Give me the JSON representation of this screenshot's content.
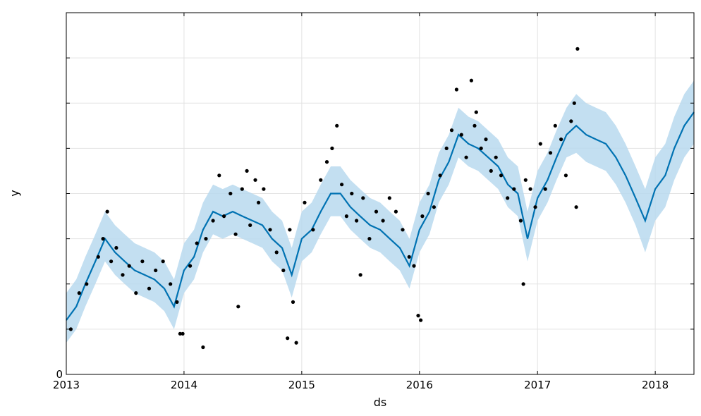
{
  "chart_data": {
    "type": "line",
    "title": "",
    "xlabel": "ds",
    "ylabel": "y",
    "xlim": [
      "2013-01-01",
      "2018-05-01"
    ],
    "ylim": [
      0,
      8
    ],
    "x_ticks": [
      "2013",
      "2014",
      "2015",
      "2016",
      "2017",
      "2018"
    ],
    "y_ticks": [
      {
        "value": 0,
        "label": "0"
      },
      {
        "value": 1,
        "label": ""
      },
      {
        "value": 2,
        "label": ""
      },
      {
        "value": 3,
        "label": ""
      },
      {
        "value": 4,
        "label": ""
      },
      {
        "value": 5,
        "label": ""
      },
      {
        "value": 6,
        "label": ""
      },
      {
        "value": 7,
        "label": ""
      }
    ],
    "grid": true,
    "colors": {
      "forecast_line": "#0072B2",
      "uncertainty_band": "#b9d9ee",
      "observed_points": "#000000",
      "grid": "#e3e3e3"
    },
    "series": [
      {
        "kind": "forecast",
        "x": [
          "2013-01-01",
          "2013-02-01",
          "2013-03-01",
          "2013-04-01",
          "2013-05-01",
          "2013-06-01",
          "2013-07-01",
          "2013-08-01",
          "2013-09-01",
          "2013-10-01",
          "2013-11-01",
          "2013-12-01",
          "2014-01-01",
          "2014-02-01",
          "2014-03-01",
          "2014-04-01",
          "2014-05-01",
          "2014-06-01",
          "2014-07-01",
          "2014-08-01",
          "2014-09-01",
          "2014-10-01",
          "2014-11-01",
          "2014-12-01",
          "2015-01-01",
          "2015-02-01",
          "2015-03-01",
          "2015-04-01",
          "2015-05-01",
          "2015-06-01",
          "2015-07-01",
          "2015-08-01",
          "2015-09-01",
          "2015-10-01",
          "2015-11-01",
          "2015-12-01",
          "2016-01-01",
          "2016-02-01",
          "2016-03-01",
          "2016-04-01",
          "2016-05-01",
          "2016-06-01",
          "2016-07-01",
          "2016-08-01",
          "2016-09-01",
          "2016-10-01",
          "2016-11-01",
          "2016-12-01",
          "2017-01-01",
          "2017-02-01",
          "2017-03-01",
          "2017-04-01",
          "2017-05-01",
          "2017-06-01",
          "2017-07-01",
          "2017-08-01",
          "2017-09-01",
          "2017-10-01",
          "2017-11-01",
          "2017-12-01",
          "2018-01-01",
          "2018-02-01",
          "2018-03-01",
          "2018-04-01",
          "2018-05-01"
        ],
        "yhat": [
          1.2,
          1.5,
          2.0,
          2.5,
          3.0,
          2.7,
          2.5,
          2.3,
          2.2,
          2.1,
          1.9,
          1.5,
          2.3,
          2.6,
          3.2,
          3.6,
          3.5,
          3.6,
          3.5,
          3.4,
          3.3,
          3.0,
          2.8,
          2.2,
          3.0,
          3.2,
          3.6,
          4.0,
          4.0,
          3.7,
          3.5,
          3.3,
          3.2,
          3.0,
          2.8,
          2.4,
          3.2,
          3.6,
          4.3,
          4.7,
          5.3,
          5.1,
          5.0,
          4.8,
          4.6,
          4.2,
          4.0,
          3.0,
          3.9,
          4.3,
          4.8,
          5.3,
          5.5,
          5.3,
          5.2,
          5.1,
          4.8,
          4.4,
          3.9,
          3.4,
          4.1,
          4.4,
          5.0,
          5.5,
          5.8
        ],
        "yhat_lower": [
          0.7,
          1.0,
          1.5,
          2.0,
          2.5,
          2.2,
          2.0,
          1.8,
          1.7,
          1.6,
          1.4,
          1.0,
          1.8,
          2.1,
          2.7,
          3.1,
          3.0,
          3.1,
          3.0,
          2.9,
          2.8,
          2.5,
          2.3,
          1.7,
          2.5,
          2.7,
          3.1,
          3.5,
          3.5,
          3.2,
          3.0,
          2.8,
          2.7,
          2.5,
          2.3,
          1.9,
          2.7,
          3.1,
          3.8,
          4.2,
          4.8,
          4.6,
          4.5,
          4.3,
          4.1,
          3.7,
          3.5,
          2.5,
          3.4,
          3.8,
          4.3,
          4.8,
          4.9,
          4.7,
          4.6,
          4.5,
          4.2,
          3.8,
          3.3,
          2.7,
          3.4,
          3.7,
          4.3,
          4.8,
          5.1
        ],
        "yhat_upper": [
          1.8,
          2.1,
          2.6,
          3.1,
          3.6,
          3.3,
          3.1,
          2.9,
          2.8,
          2.7,
          2.5,
          2.1,
          2.9,
          3.2,
          3.8,
          4.2,
          4.1,
          4.2,
          4.1,
          4.0,
          3.9,
          3.6,
          3.4,
          2.8,
          3.6,
          3.8,
          4.2,
          4.6,
          4.6,
          4.3,
          4.1,
          3.9,
          3.8,
          3.6,
          3.4,
          3.0,
          3.8,
          4.2,
          4.9,
          5.3,
          5.9,
          5.7,
          5.6,
          5.4,
          5.2,
          4.8,
          4.6,
          3.6,
          4.5,
          4.9,
          5.4,
          5.9,
          6.2,
          6.0,
          5.9,
          5.8,
          5.5,
          5.1,
          4.6,
          4.1,
          4.8,
          5.1,
          5.7,
          6.2,
          6.5
        ]
      },
      {
        "kind": "observed",
        "x": [
          "2013-01-15",
          "2013-02-10",
          "2013-03-05",
          "2013-04-10",
          "2013-04-25",
          "2013-05-08",
          "2013-05-20",
          "2013-06-05",
          "2013-06-25",
          "2013-07-15",
          "2013-08-05",
          "2013-08-25",
          "2013-09-15",
          "2013-10-05",
          "2013-10-28",
          "2013-11-20",
          "2013-12-10",
          "2013-12-28",
          "2014-01-20",
          "2014-02-10",
          "2014-03-01",
          "2014-03-10",
          "2014-04-01",
          "2014-04-20",
          "2014-05-05",
          "2014-05-25",
          "2014-06-10",
          "2014-06-30",
          "2014-07-15",
          "2014-07-25",
          "2014-08-10",
          "2014-08-20",
          "2014-09-05",
          "2014-09-25",
          "2014-10-15",
          "2014-11-05",
          "2014-11-25",
          "2014-12-15",
          "2015-01-10",
          "2015-02-05",
          "2015-03-01",
          "2015-03-20",
          "2015-04-05",
          "2015-04-20",
          "2015-05-05",
          "2015-05-20",
          "2015-06-05",
          "2015-06-20",
          "2015-07-10",
          "2015-07-30",
          "2015-08-20",
          "2015-09-10",
          "2015-09-30",
          "2015-10-20",
          "2015-11-10",
          "2015-11-30",
          "2015-12-15",
          "2015-12-28",
          "2016-01-10",
          "2016-01-28",
          "2016-02-15",
          "2016-03-05",
          "2016-03-25",
          "2016-04-10",
          "2016-04-25",
          "2016-05-10",
          "2016-05-25",
          "2016-06-10",
          "2016-06-25",
          "2016-07-10",
          "2016-07-25",
          "2016-08-10",
          "2016-08-25",
          "2016-09-10",
          "2016-09-30",
          "2016-10-20",
          "2016-11-10",
          "2016-11-25",
          "2016-12-10",
          "2016-12-25",
          "2017-01-10",
          "2017-01-25",
          "2017-02-10",
          "2017-02-25",
          "2017-03-15",
          "2017-03-30",
          "2017-04-15",
          "2017-04-25",
          "2017-05-05",
          "2016-11-18",
          "2015-07-02",
          "2014-06-18",
          "2013-12-20",
          "2014-11-18",
          "2014-12-05",
          "2016-01-05",
          "2017-05-01",
          "2016-06-20"
        ],
        "y": [
          1.0,
          1.8,
          2.0,
          2.6,
          3.0,
          3.6,
          2.5,
          2.8,
          2.2,
          2.4,
          1.8,
          2.5,
          1.9,
          2.3,
          2.5,
          2.0,
          1.6,
          0.9,
          2.4,
          2.9,
          0.6,
          3.0,
          3.4,
          4.4,
          3.5,
          4.0,
          3.1,
          4.1,
          4.5,
          3.3,
          4.3,
          3.8,
          4.1,
          3.2,
          2.7,
          2.3,
          3.2,
          0.7,
          3.8,
          3.2,
          4.3,
          4.7,
          5.0,
          5.5,
          4.2,
          3.5,
          4.0,
          3.4,
          3.9,
          3.0,
          3.6,
          3.4,
          3.9,
          3.6,
          3.2,
          2.6,
          2.4,
          1.3,
          3.5,
          4.0,
          3.7,
          4.4,
          5.0,
          5.4,
          6.3,
          5.3,
          4.8,
          6.5,
          5.8,
          5.0,
          5.2,
          4.5,
          4.8,
          4.4,
          3.9,
          4.1,
          3.4,
          4.3,
          4.1,
          3.7,
          5.1,
          4.1,
          4.9,
          5.5,
          5.2,
          4.4,
          5.6,
          6.0,
          7.2,
          2.0,
          2.2,
          1.5,
          0.9,
          0.8,
          1.6,
          1.2,
          3.7,
          5.5
        ]
      }
    ]
  }
}
